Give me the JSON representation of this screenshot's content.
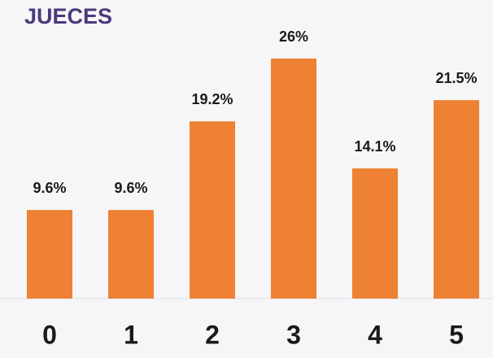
{
  "chart_data": {
    "type": "bar",
    "title": "JUECES",
    "categories": [
      "0",
      "1",
      "2",
      "3",
      "4",
      "5"
    ],
    "values": [
      9.6,
      9.6,
      19.2,
      26,
      14.1,
      21.5
    ],
    "value_labels": [
      "9.6%",
      "9.6%",
      "19.2%",
      "26%",
      "14.1%",
      "21.5%"
    ],
    "color": "#ee8133"
  }
}
